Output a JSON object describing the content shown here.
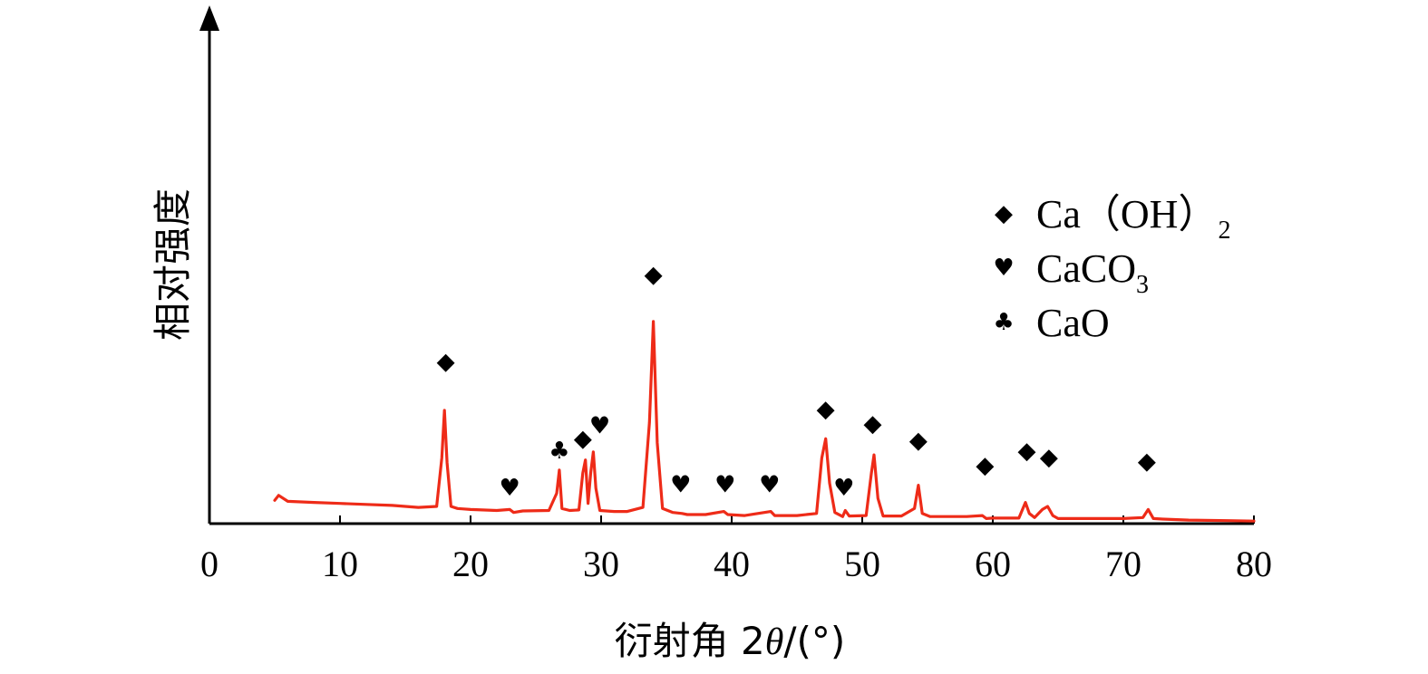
{
  "chart_data": {
    "type": "line",
    "title": "",
    "xlabel": "衍射角 2θ/(°)",
    "xlabel_parts": {
      "prefix": "衍射角 2",
      "symbol": "θ",
      "suffix": "/(°)"
    },
    "ylabel": "相对强度",
    "xlim": [
      0,
      80
    ],
    "ylim": [
      0,
      100
    ],
    "x_ticks": [
      "0",
      "10",
      "20",
      "30",
      "40",
      "50",
      "60",
      "70",
      "80"
    ],
    "y_ticks": [],
    "grid": false,
    "legend_position": "top-right",
    "series": [
      {
        "color": "#ee2b18",
        "x": [
          5.0,
          5.3,
          6,
          8,
          10,
          12,
          14,
          16,
          17.4,
          17.8,
          18.0,
          18.2,
          18.5,
          19,
          20,
          22,
          23.0,
          23.3,
          24,
          26,
          26.6,
          26.8,
          27.0,
          27.6,
          28.3,
          28.6,
          28.8,
          29.0,
          29.2,
          29.4,
          29.6,
          29.9,
          31,
          32,
          33.2,
          33.7,
          34.0,
          34.3,
          34.7,
          35.5,
          36.2,
          36.6,
          38,
          39.4,
          39.7,
          41,
          43.0,
          43.3,
          45,
          46.5,
          46.9,
          47.2,
          47.5,
          47.9,
          48.5,
          48.7,
          49,
          50.3,
          50.7,
          50.9,
          51.2,
          51.6,
          53,
          54.0,
          54.3,
          54.6,
          55.2,
          56,
          57,
          58,
          59.2,
          59.5,
          60,
          62,
          62.5,
          62.8,
          63.2,
          63.8,
          64.2,
          64.6,
          65,
          67,
          70,
          71.5,
          71.9,
          72.3,
          73,
          75,
          78,
          80
        ],
        "y": [
          4.6,
          5.6,
          4.4,
          4.2,
          4.0,
          3.8,
          3.6,
          3.2,
          3.4,
          13,
          22.4,
          12,
          3.4,
          3.0,
          2.8,
          2.6,
          2.8,
          2.2,
          2.5,
          2.6,
          6,
          10.6,
          3.0,
          2.6,
          2.7,
          10,
          12.6,
          4,
          10,
          14.2,
          7,
          2.6,
          2.4,
          2.4,
          3.2,
          20,
          40,
          16,
          3.0,
          2.2,
          2.0,
          1.8,
          1.8,
          2.4,
          1.8,
          1.6,
          2.4,
          1.6,
          1.6,
          2.0,
          13,
          16.8,
          8,
          2.2,
          1.4,
          2.6,
          1.5,
          1.6,
          10,
          13.6,
          5,
          1.5,
          1.5,
          3,
          7.6,
          2,
          1.4,
          1.4,
          1.4,
          1.4,
          1.6,
          1.0,
          1.1,
          1.1,
          4.2,
          2.0,
          1.2,
          2.8,
          3.4,
          1.6,
          1.0,
          1.0,
          1.0,
          1.2,
          2.8,
          1.0,
          0.9,
          0.7,
          0.6,
          0.5
        ]
      }
    ],
    "peak_markers": [
      {
        "phase": "Ca(OH)2",
        "symbol": "◆",
        "x": 18.1,
        "y": 32
      },
      {
        "phase": "CaCO3",
        "symbol": "♥",
        "x": 23.0,
        "y": 7
      },
      {
        "phase": "CaO",
        "symbol": "♣",
        "x": 26.8,
        "y": 14.3
      },
      {
        "phase": "Ca(OH)2",
        "symbol": "◆",
        "x": 28.6,
        "y": 16.8
      },
      {
        "phase": "CaCO3",
        "symbol": "♥",
        "x": 29.9,
        "y": 19.3
      },
      {
        "phase": "Ca(OH)2",
        "symbol": "◆",
        "x": 34.0,
        "y": 49.2
      },
      {
        "phase": "CaCO3",
        "symbol": "♥",
        "x": 36.1,
        "y": 7.6
      },
      {
        "phase": "CaCO3",
        "symbol": "♥",
        "x": 39.5,
        "y": 7.6
      },
      {
        "phase": "CaCO3",
        "symbol": "♥",
        "x": 42.9,
        "y": 7.6
      },
      {
        "phase": "Ca(OH)2",
        "symbol": "◆",
        "x": 47.2,
        "y": 22.6
      },
      {
        "phase": "CaCO3",
        "symbol": "♥",
        "x": 48.6,
        "y": 7
      },
      {
        "phase": "Ca(OH)2",
        "symbol": "◆",
        "x": 50.8,
        "y": 19.7
      },
      {
        "phase": "Ca(OH)2",
        "symbol": "◆",
        "x": 54.3,
        "y": 16.4
      },
      {
        "phase": "Ca(OH)2",
        "symbol": "◆",
        "x": 59.4,
        "y": 11.5
      },
      {
        "phase": "Ca(OH)2",
        "symbol": "◆",
        "x": 62.6,
        "y": 14.3
      },
      {
        "phase": "Ca(OH)2",
        "symbol": "◆",
        "x": 64.3,
        "y": 13.1
      },
      {
        "phase": "Ca(OH)2",
        "symbol": "◆",
        "x": 71.8,
        "y": 12.3
      }
    ],
    "legend": [
      {
        "symbol": "◆",
        "main": "Ca（OH）",
        "sub": "2"
      },
      {
        "symbol": "♥",
        "main": "CaCO",
        "sub": "3"
      },
      {
        "symbol": "♣",
        "main": "CaO",
        "sub": ""
      }
    ]
  }
}
